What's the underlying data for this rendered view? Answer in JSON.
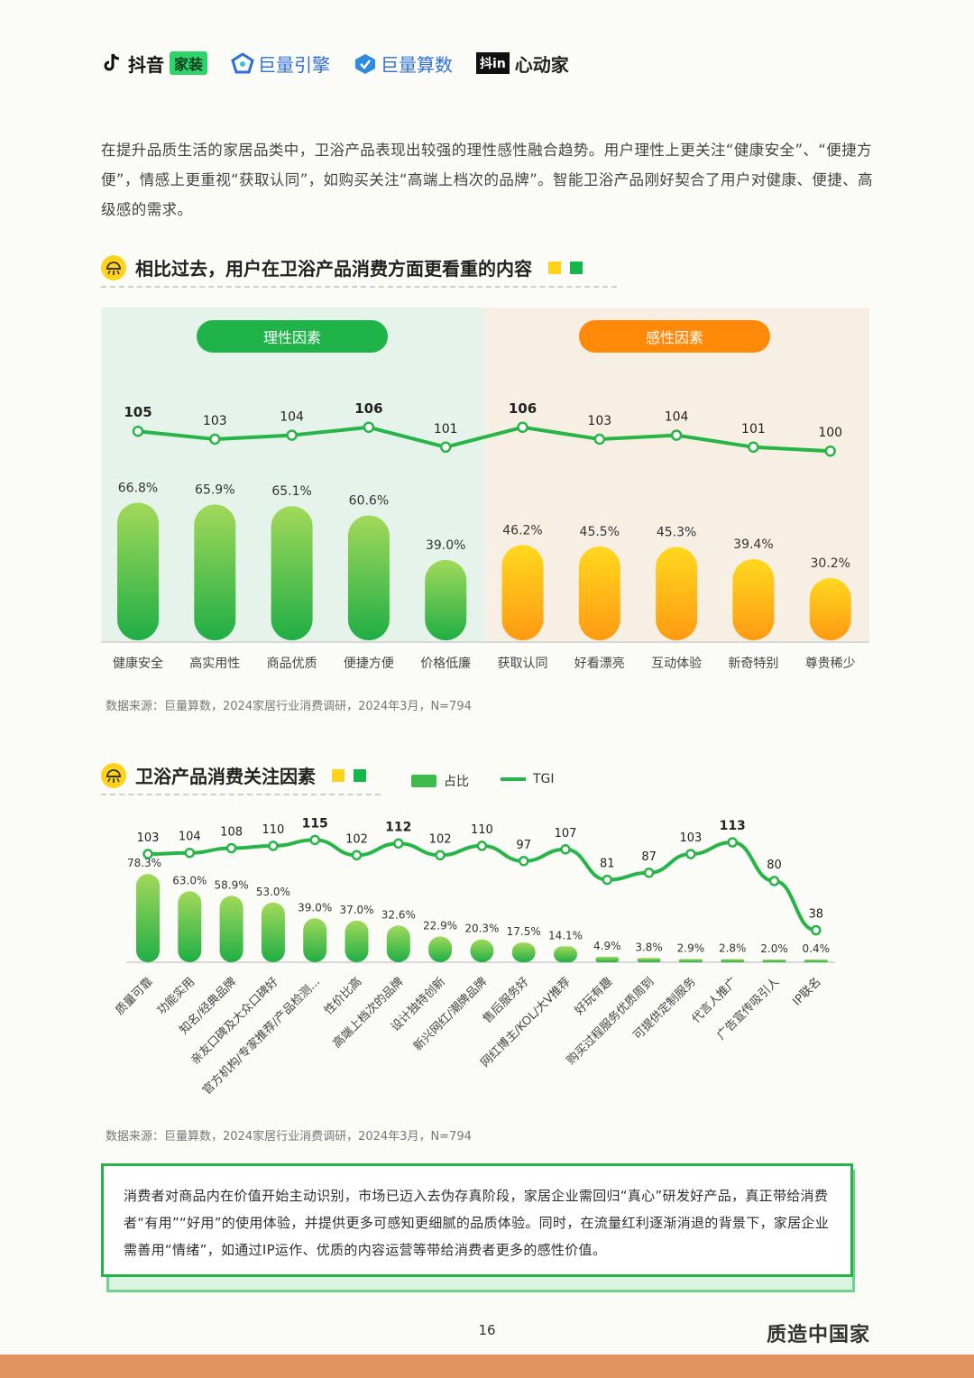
{
  "header": {
    "logos": [
      {
        "name": "抖音",
        "tag": "家装"
      },
      {
        "name": "巨量引擎"
      },
      {
        "name": "巨量算数"
      },
      {
        "name": "心动家",
        "box": "抖in"
      }
    ]
  },
  "intro_text": "在提升品质生活的家居品类中，卫浴产品表现出较强的理性感性融合趋势。用户理性上更关注“健康安全”、“便捷方便”，情感上更重视“获取认同”，如购买关注“高端上档次的品牌”。智能卫浴产品刚好契合了用户对健康、便捷、高级感的需求。",
  "section1": {
    "title": "相比过去，用户在卫浴产品消费方面更看重的内容",
    "source": "数据来源：巨量算数，2024家居行业消费调研，2024年3月，N=794"
  },
  "section2": {
    "title": "卫浴产品消费关注因素",
    "source": "数据来源：巨量算数，2024家居行业消费调研，2024年3月，N=794"
  },
  "colors": {
    "green": "#2db84a",
    "green_light": "#8ed35a",
    "orange": "#ff8a0a",
    "yellow": "#ffd21c",
    "line": "#28b548",
    "rational_bg": "#e6f3ea",
    "emotional_bg": "#f8efe4"
  },
  "chart_data": [
    {
      "type": "bar",
      "groups": [
        {
          "label": "理性因素",
          "categories": [
            "健康安全",
            "高实用性",
            "商品优质",
            "便捷方便",
            "价格低廉"
          ]
        },
        {
          "label": "感性因素",
          "categories": [
            "获取认同",
            "好看漂亮",
            "互动体验",
            "新奇特别",
            "尊贵稀少"
          ]
        }
      ],
      "categories": [
        "健康安全",
        "高实用性",
        "商品优质",
        "便捷方便",
        "价格低廉",
        "获取认同",
        "好看漂亮",
        "互动体验",
        "新奇特别",
        "尊贵稀少"
      ],
      "series": [
        {
          "values": [
            66.8,
            65.9,
            65.1,
            60.6,
            39.0,
            46.2,
            45.5,
            45.3,
            39.4,
            30.2
          ],
          "labels": [
            "66.8%",
            "65.9%",
            "65.1%",
            "60.6%",
            "39.0%",
            "46.2%",
            "45.5%",
            "45.3%",
            "39.4%",
            "30.2%"
          ]
        },
        {
          "type": "line",
          "values": [
            105,
            103,
            104,
            106,
            101,
            106,
            103,
            104,
            101,
            100
          ],
          "labels": [
            "105",
            "103",
            "104",
            "106",
            "101",
            "106",
            "103",
            "104",
            "101",
            "100"
          ]
        }
      ]
    },
    {
      "type": "bar",
      "legend": [
        "占比",
        "TGI"
      ],
      "categories": [
        "质量可靠",
        "功能实用",
        "知名/经典品牌",
        "亲友口碑及大众口碑好",
        "官方机构/专家推荐/产品检测...",
        "性价比高",
        "高端上档次的品牌",
        "设计独特创新",
        "新兴网红/潮牌品牌",
        "售后服务好",
        "网红博主/KOL/大V推荐",
        "好玩有趣",
        "购买过程服务优质周到",
        "可提供定制服务",
        "代言人推广",
        "广告宣传吸引人",
        "IP联名"
      ],
      "series": [
        {
          "name": "占比",
          "values": [
            78.3,
            63.0,
            58.9,
            53.0,
            39.0,
            37.0,
            32.6,
            22.9,
            20.3,
            17.5,
            14.1,
            4.9,
            3.8,
            2.9,
            2.8,
            2.0,
            0.4
          ],
          "labels": [
            "78.3%",
            "63.0%",
            "58.9%",
            "53.0%",
            "39.0%",
            "37.0%",
            "32.6%",
            "22.9%",
            "20.3%",
            "17.5%",
            "14.1%",
            "4.9%",
            "3.8%",
            "2.9%",
            "2.8%",
            "2.0%",
            "0.4%"
          ]
        },
        {
          "name": "TGI",
          "type": "line",
          "values": [
            103,
            104,
            108,
            110,
            115,
            102,
            112,
            102,
            110,
            97,
            107,
            81,
            87,
            103,
            113,
            80,
            38
          ],
          "labels": [
            "103",
            "104",
            "108",
            "110",
            "115",
            "102",
            "112",
            "102",
            "110",
            "97",
            "107",
            "81",
            "87",
            "103",
            "113",
            "80",
            "38"
          ]
        }
      ]
    }
  ],
  "conclusion": "消费者对商品内在价值开始主动识别，市场已迈入去伪存真阶段，家居企业需回归“真心”研发好产品，真正带给消费者“有用”“好用”的使用体验，并提供更多可感知更细腻的品质体验。同时，在流量红利逐渐消退的背景下，家居企业需善用“情绪”，如通过IP运作、优质的内容运营等带给消费者更多的感性价值。",
  "footer": {
    "page": "16",
    "brand": "质造中国家"
  }
}
